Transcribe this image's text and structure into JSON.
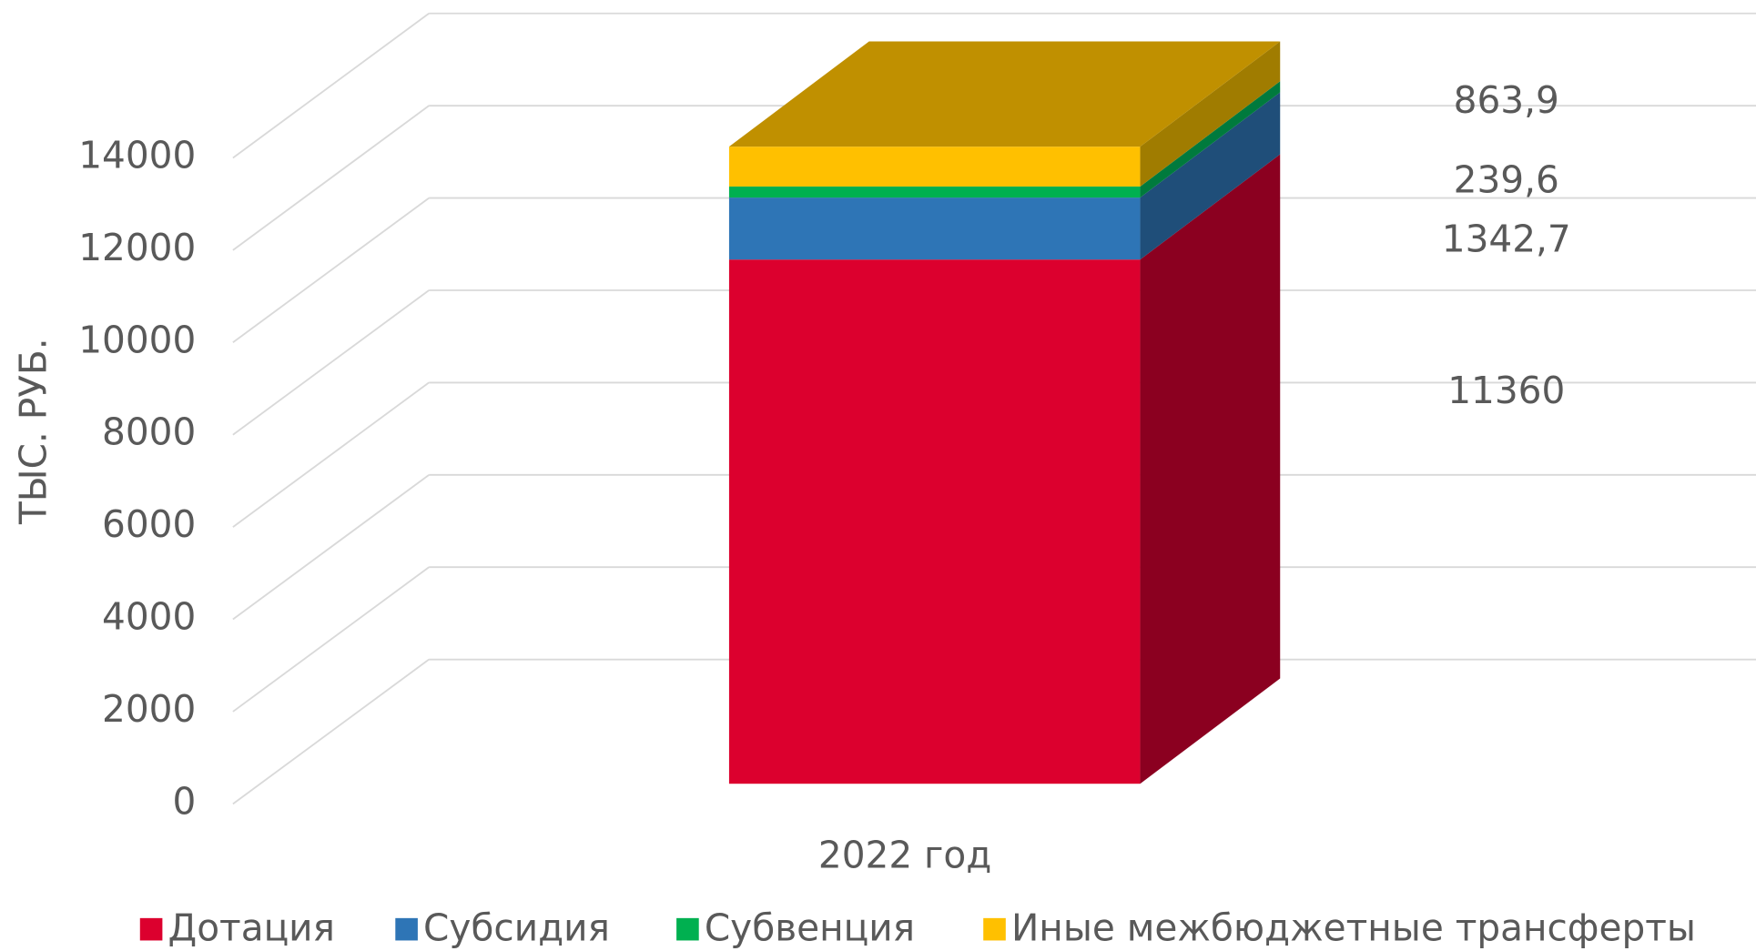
{
  "chart_data": {
    "type": "bar3d_stacked",
    "y_label": "ТЫС. РУБ.",
    "categories": [
      "2022 год"
    ],
    "series": [
      {
        "name": "Дотация",
        "color": "#dc002e",
        "side_color": "#8b0020",
        "values": [
          11360
        ],
        "value_labels": [
          "11360"
        ]
      },
      {
        "name": "Субсидия",
        "color": "#2e75b6",
        "side_color": "#1f4e79",
        "values": [
          1342.7
        ],
        "value_labels": [
          "1342,7"
        ]
      },
      {
        "name": "Субвенция",
        "color": "#00b050",
        "side_color": "#007a3d",
        "values": [
          239.6
        ],
        "value_labels": [
          "239,6"
        ]
      },
      {
        "name": "Иные межбюджетные трансферты",
        "color": "#ffc000",
        "side_color": "#a07c00",
        "top_color": "#c09000",
        "values": [
          863.9
        ],
        "value_labels": [
          "863,9"
        ]
      }
    ],
    "ylim": [
      0,
      14000
    ],
    "yticks": [
      0,
      2000,
      4000,
      6000,
      8000,
      10000,
      12000,
      14000
    ],
    "grid": true,
    "legend": "bottom"
  }
}
